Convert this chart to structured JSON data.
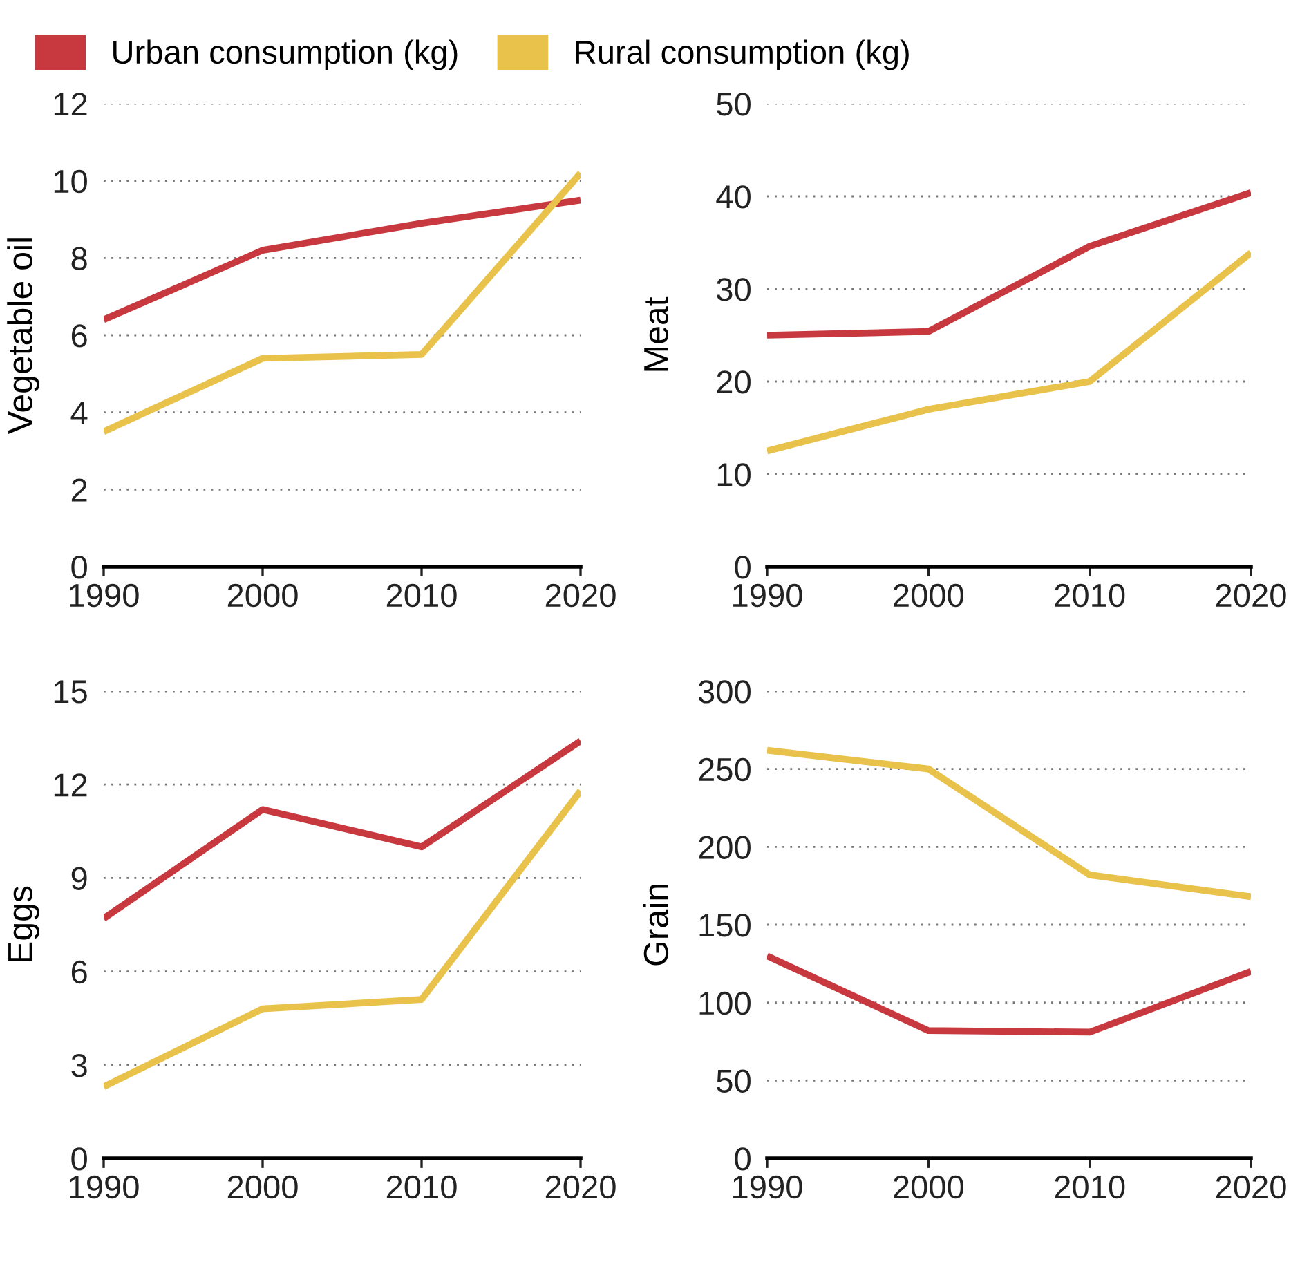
{
  "chart_data": [
    {
      "type": "line",
      "ylabel": "Vegetable oil",
      "x": [
        1990,
        2000,
        2010,
        2020
      ],
      "xlim": [
        1990,
        2020
      ],
      "xticks": [
        1990,
        2000,
        2010,
        2020
      ],
      "ylim": [
        0,
        12
      ],
      "yticks": [
        0,
        2,
        4,
        6,
        8,
        10,
        12
      ],
      "grid": "y",
      "legend": "top",
      "line_style": "solid",
      "series": [
        {
          "name": "Urban consumption (kg)",
          "color": "#c8393f",
          "values": [
            6.4,
            8.2,
            8.9,
            9.5
          ]
        },
        {
          "name": "Rural consumption (kg)",
          "color": "#e8c24a",
          "values": [
            3.5,
            5.4,
            5.5,
            10.2
          ]
        }
      ]
    },
    {
      "type": "line",
      "ylabel": "Meat",
      "x": [
        1990,
        2000,
        2010,
        2020
      ],
      "xlim": [
        1990,
        2020
      ],
      "xticks": [
        1990,
        2000,
        2010,
        2020
      ],
      "ylim": [
        0,
        50
      ],
      "yticks": [
        0,
        10,
        20,
        30,
        40,
        50
      ],
      "grid": "y",
      "line_style": "solid",
      "series": [
        {
          "color": "#c8393f",
          "values": [
            25,
            25.4,
            34.6,
            40.4
          ]
        },
        {
          "color": "#e8c24a",
          "values": [
            12.5,
            17,
            20,
            33.9
          ]
        }
      ]
    },
    {
      "type": "line",
      "ylabel": "Eggs",
      "x": [
        1990,
        2000,
        2010,
        2020
      ],
      "xlim": [
        1990,
        2020
      ],
      "xticks": [
        1990,
        2000,
        2010,
        2020
      ],
      "ylim": [
        0,
        15
      ],
      "yticks": [
        0,
        3,
        6,
        9,
        12,
        15
      ],
      "grid": "y",
      "line_style": "solid",
      "series": [
        {
          "color": "#c8393f",
          "values": [
            7.7,
            11.2,
            10,
            13.4
          ]
        },
        {
          "color": "#e8c24a",
          "values": [
            2.3,
            4.8,
            5.1,
            11.8
          ]
        }
      ]
    },
    {
      "type": "line",
      "ylabel": "Grain",
      "x": [
        1990,
        2000,
        2010,
        2020
      ],
      "xlim": [
        1990,
        2020
      ],
      "xticks": [
        1990,
        2000,
        2010,
        2020
      ],
      "ylim": [
        0,
        300
      ],
      "yticks": [
        0,
        50,
        100,
        150,
        200,
        250,
        300
      ],
      "grid": "y",
      "line_style": "solid",
      "series": [
        {
          "color": "#c8393f",
          "values": [
            130,
            82,
            81,
            120
          ]
        },
        {
          "color": "#e8c24a",
          "values": [
            262,
            250,
            182,
            168
          ]
        }
      ]
    }
  ]
}
